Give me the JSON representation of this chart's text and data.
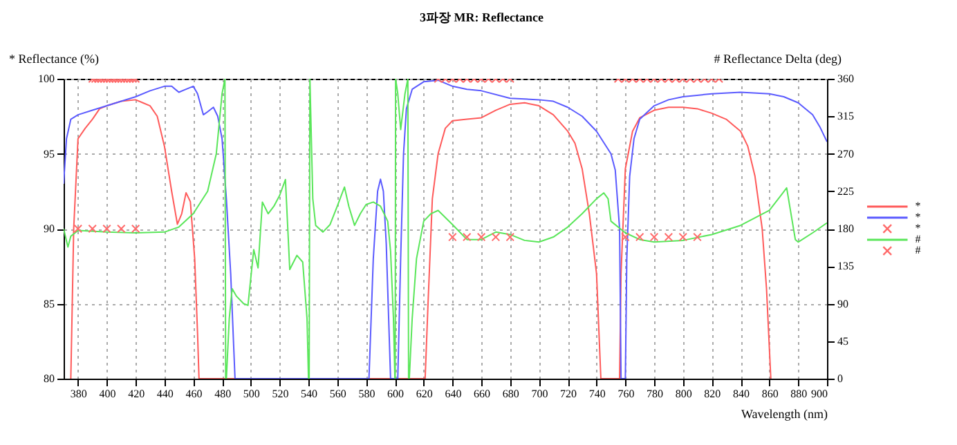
{
  "chart_data": {
    "type": "line",
    "title": "3파장 MR: Reflectance",
    "xlabel": "Wavelength (nm)",
    "ylabel": "* Reflectance (%)",
    "y2label": "# Reflectance Delta (deg)",
    "xlim": [
      370,
      900
    ],
    "xticks": [
      380,
      400,
      420,
      440,
      460,
      480,
      500,
      520,
      540,
      560,
      580,
      600,
      620,
      640,
      660,
      680,
      700,
      720,
      740,
      760,
      780,
      800,
      820,
      840,
      860,
      880,
      900
    ],
    "ylim": [
      80,
      100
    ],
    "yticks": [
      80,
      85,
      90,
      95,
      100
    ],
    "y2lim": [
      0,
      360
    ],
    "y2ticks": [
      0,
      45,
      90,
      135,
      180,
      225,
      270,
      315,
      360
    ],
    "grid": true,
    "legend": "right",
    "series": [
      {
        "name": "*",
        "type": "line",
        "color": "#ff5a5a",
        "x": [
          375,
          377,
          380,
          385,
          390,
          395,
          400,
          410,
          420,
          425,
          430,
          435,
          440,
          445,
          449,
          452,
          455,
          458,
          461,
          463,
          464,
          540,
          621,
          623,
          626,
          630,
          635,
          640,
          650,
          660,
          670,
          680,
          690,
          700,
          710,
          720,
          725,
          730,
          735,
          740,
          743,
          750,
          756,
          757,
          760,
          765,
          770,
          780,
          790,
          800,
          810,
          820,
          830,
          840,
          845,
          850,
          855,
          858,
          861
        ],
        "values": [
          80,
          90,
          96,
          96.7,
          97.3,
          98,
          98.2,
          98.5,
          98.6,
          98.4,
          98.2,
          97.5,
          95.5,
          92.5,
          90.3,
          91,
          92.4,
          91.8,
          88,
          83,
          80,
          null,
          80,
          85,
          92,
          95,
          96.7,
          97.2,
          97.3,
          97.4,
          97.9,
          98.3,
          98.4,
          98.2,
          97.6,
          96.5,
          95.7,
          94,
          91,
          87,
          80,
          null,
          80,
          87,
          94,
          96.5,
          97.4,
          97.9,
          98.1,
          98.1,
          98,
          97.7,
          97.3,
          96.5,
          95.5,
          93.5,
          90,
          86,
          80
        ]
      },
      {
        "name": "*",
        "type": "line",
        "color": "#5a5aff",
        "x": [
          370,
          372,
          375,
          380,
          390,
          400,
          410,
          420,
          430,
          440,
          445,
          450,
          455,
          460,
          463,
          467,
          470,
          474,
          477,
          480,
          483,
          486,
          489,
          530,
          582,
          585,
          588,
          590,
          592,
          594,
          597,
          600,
          602,
          604,
          606,
          608,
          612,
          620,
          630,
          640,
          650,
          660,
          680,
          700,
          710,
          720,
          730,
          740,
          750,
          753,
          756,
          757,
          758,
          760,
          761,
          763,
          766,
          770,
          780,
          790,
          800,
          820,
          840,
          860,
          870,
          880,
          890,
          895,
          900
        ],
        "values": [
          93,
          96,
          97.3,
          97.6,
          97.9,
          98.2,
          98.5,
          98.8,
          99.2,
          99.5,
          99.5,
          99.1,
          99.3,
          99.5,
          99,
          97.6,
          97.8,
          98.1,
          97.5,
          96,
          92,
          87,
          80,
          null,
          80,
          88,
          92.5,
          93.3,
          92.5,
          89,
          80,
          null,
          80,
          88,
          95,
          98,
          99.3,
          99.8,
          99.9,
          99.5,
          99.3,
          99.2,
          98.7,
          98.6,
          98.5,
          98.1,
          97.5,
          96.5,
          95,
          93.9,
          90,
          80,
          null,
          80,
          88,
          93.5,
          96,
          97.3,
          98.2,
          98.6,
          98.8,
          99,
          99.1,
          99,
          98.8,
          98.4,
          97.6,
          96.8,
          95.8
        ]
      },
      {
        "name": "*",
        "type": "scatter",
        "marker": "cross",
        "color": "#ff6a6a",
        "x": [
          390,
          392,
          394,
          396,
          398,
          400,
          402,
          404,
          406,
          408,
          410,
          412,
          414,
          416,
          418,
          420,
          630,
          635,
          640,
          645,
          650,
          655,
          660,
          665,
          670,
          675,
          680,
          755,
          760,
          765,
          770,
          775,
          780,
          785,
          790,
          795,
          800,
          805,
          810,
          815,
          820,
          825
        ],
        "values": [
          100,
          100,
          100,
          100,
          100,
          100,
          100,
          100,
          100,
          100,
          100,
          100,
          100,
          100,
          100,
          100,
          100,
          100,
          100,
          100,
          100,
          100,
          100,
          100,
          100,
          100,
          100,
          100,
          100,
          100,
          100,
          100,
          100,
          100,
          100,
          100,
          100,
          100,
          100,
          100,
          100,
          100
        ]
      },
      {
        "name": "#",
        "type": "line",
        "axis": "y2",
        "color": "#5ae65a",
        "x": [
          370,
          373,
          375,
          380,
          400,
          420,
          440,
          450,
          460,
          470,
          476,
          480,
          482,
          482.5,
          483,
          485,
          487,
          490,
          495,
          498,
          502,
          505,
          508,
          512,
          516,
          520,
          524,
          527,
          532,
          536,
          539,
          540,
          540.5,
          541,
          543,
          545,
          550,
          555,
          560,
          565,
          568,
          572,
          576,
          580,
          585,
          590,
          595,
          597,
          599,
          600,
          600.2,
          600.5,
          602,
          604,
          607,
          609,
          609.5,
          610,
          612,
          615,
          620,
          625,
          630,
          640,
          650,
          660,
          670,
          680,
          690,
          700,
          710,
          720,
          730,
          740,
          745,
          748,
          750,
          760,
          770,
          780,
          800,
          820,
          840,
          860,
          868,
          872,
          875,
          878,
          880,
          890,
          900
        ],
        "values": [
          180,
          158,
          171,
          178,
          176,
          175,
          176,
          182,
          198,
          225,
          270,
          342,
          360,
          null,
          0,
          72,
          108,
          99,
          90,
          88,
          155,
          133,
          212,
          198,
          207,
          220,
          239,
          131,
          148,
          140,
          72,
          0,
          null,
          360,
          216,
          184,
          176,
          185,
          207,
          230,
          207,
          184,
          198,
          209,
          212,
          207,
          189,
          153,
          72,
          0,
          null,
          360,
          342,
          299,
          342,
          360,
          null,
          0,
          72,
          144,
          189,
          198,
          202,
          185,
          167,
          167,
          176,
          173,
          166,
          164,
          170,
          182,
          198,
          216,
          223,
          216,
          189,
          175,
          167,
          164,
          166,
          173,
          184,
          202,
          220,
          229,
          198,
          167,
          164,
          175,
          187
        ]
      },
      {
        "name": "#",
        "type": "scatter",
        "marker": "cross",
        "axis": "y2",
        "color": "#ff6a6a",
        "x": [
          380,
          390,
          400,
          410,
          420,
          640,
          650,
          660,
          670,
          680,
          760,
          770,
          780,
          790,
          800,
          810
        ],
        "values": [
          180,
          180,
          180,
          180,
          180,
          170,
          170,
          170,
          170,
          170,
          170,
          170,
          170,
          170,
          170,
          170
        ]
      }
    ]
  }
}
